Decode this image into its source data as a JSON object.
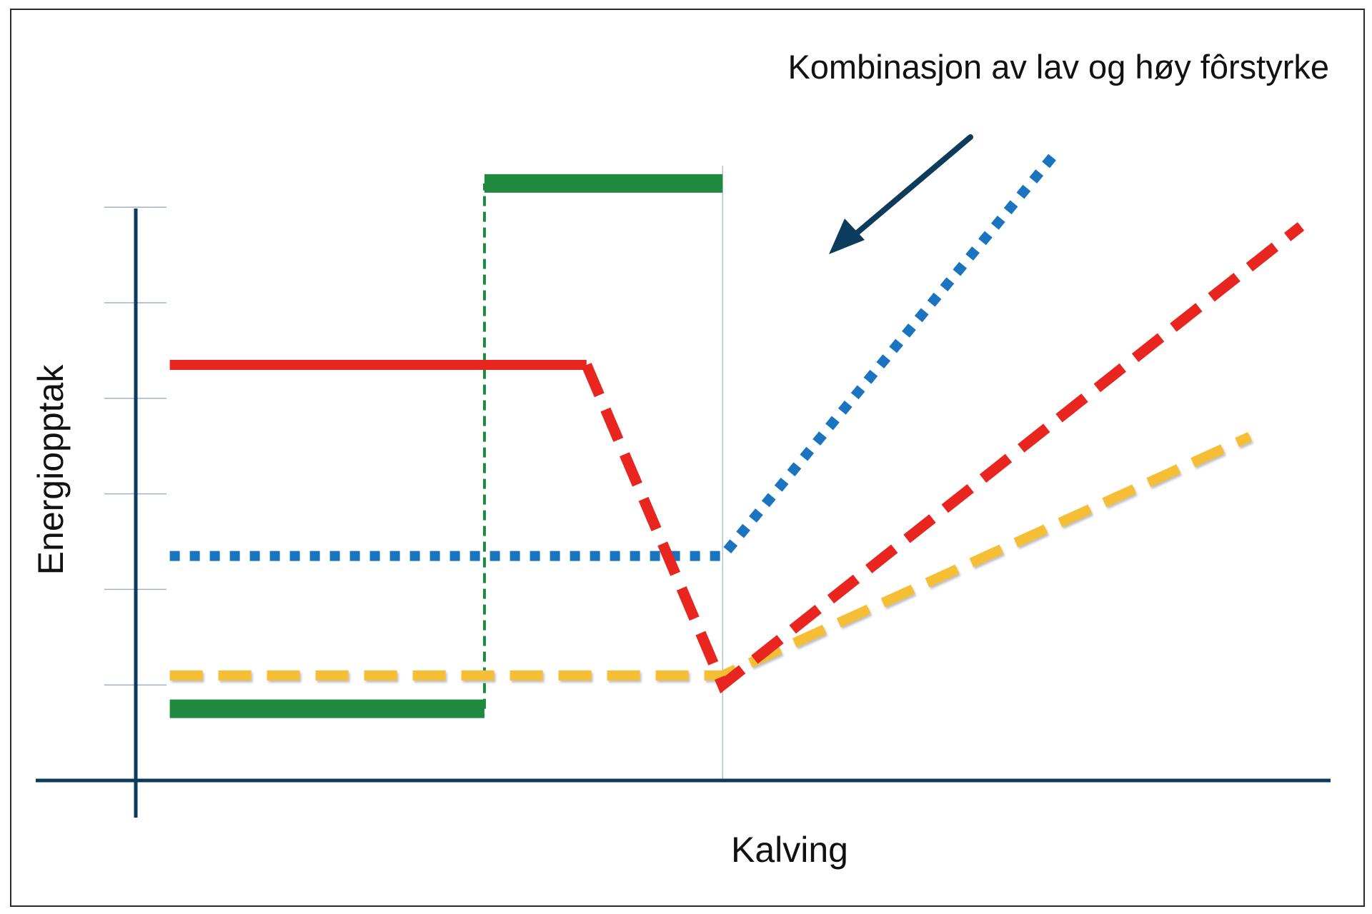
{
  "chart_data": {
    "type": "line",
    "title": "",
    "annotation": "Kombinasjon av lav og høy fôrstyrke",
    "xlabel": "Kalving",
    "ylabel": "Energiopptak",
    "x_marker": "Kalving",
    "xlim": [
      -40,
      31
    ],
    "ylim": [
      0,
      6.6
    ],
    "grid": false,
    "legend": "none",
    "y_ticks": [
      1,
      2,
      3,
      4,
      5,
      6
    ],
    "series": [
      {
        "color": "#1f8a3f",
        "style": "solid-thick",
        "points": [
          [
            -38,
            0.75
          ],
          [
            -19.5,
            0.75
          ],
          [
            -19.5,
            6.25
          ],
          [
            -5.5,
            6.25
          ]
        ],
        "connector_style": "dashed-thin"
      },
      {
        "color": "#e8251f",
        "style": "solid-then-dashed",
        "points": [
          [
            -38,
            4.35
          ],
          [
            -13.5,
            4.35
          ],
          [
            -5.5,
            1.0
          ],
          [
            28.5,
            5.8
          ]
        ],
        "dashed_from_index": 1
      },
      {
        "color": "#1a74bf",
        "style": "dotted",
        "points": [
          [
            -38,
            2.35
          ],
          [
            -5.5,
            2.35
          ],
          [
            14,
            6.55
          ]
        ]
      },
      {
        "color": "#f6be35",
        "style": "dashed",
        "points": [
          [
            -38,
            1.1
          ],
          [
            -5.5,
            1.1
          ],
          [
            25.5,
            3.6
          ]
        ]
      }
    ],
    "axis_color": "#0d3b5c",
    "arrow_color": "#0d3b5c"
  }
}
